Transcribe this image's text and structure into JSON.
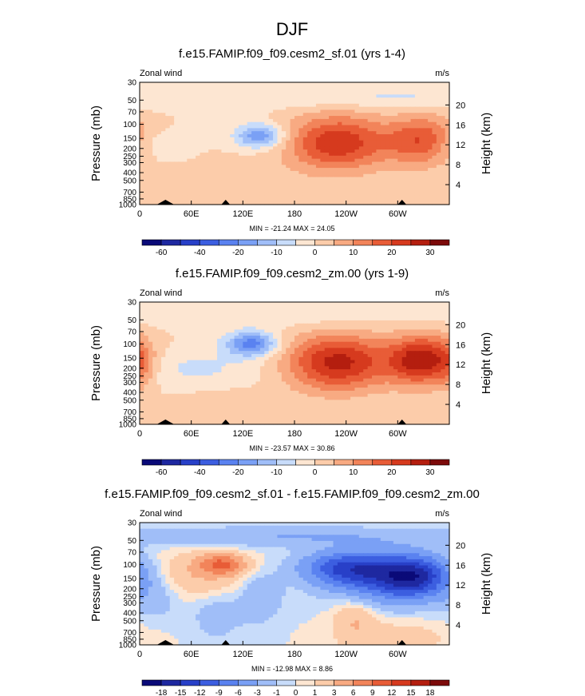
{
  "figure_title": "DJF",
  "chart_data": [
    {
      "type": "heatmap",
      "title": "f.e15.FAMIP.f09_f09.cesm2_sf.01 (yrs 1-4)",
      "left_label": "Zonal wind",
      "units_label": "m/s",
      "ylabel": "Pressure (mb)",
      "ylabel_right": "Height (km)",
      "pressure_ticks": [
        "30",
        "50",
        "70",
        "100",
        "150",
        "200",
        "250",
        "300",
        "400",
        "500",
        "700",
        "850",
        "1000"
      ],
      "height_ticks": [
        "20",
        "16",
        "12",
        "8",
        "4"
      ],
      "x_ticks": [
        "0",
        "60E",
        "120E",
        "180",
        "120W",
        "60W"
      ],
      "xlim": [
        0,
        360
      ],
      "stats": "MIN = -21.24  MAX = 24.05",
      "colorbar_labels": [
        "-60",
        "-40",
        "-20",
        "-10",
        "0",
        "10",
        "20",
        "30"
      ],
      "colorbar_levels": [
        -70,
        -60,
        -50,
        -40,
        -30,
        -20,
        -15,
        -10,
        -5,
        0,
        5,
        10,
        15,
        20,
        25,
        30
      ],
      "fields": [
        {
          "lon": 140,
          "p": 140,
          "value": -21,
          "width_deg": 28,
          "height_dec": 0.15
        },
        {
          "lon": 10,
          "p": 180,
          "value": -6,
          "width_deg": 40,
          "height_dec": 0.2
        },
        {
          "lon": 230,
          "p": 170,
          "value": 24,
          "width_deg": 60,
          "height_dec": 0.35
        },
        {
          "lon": 330,
          "p": 160,
          "value": 20,
          "width_deg": 40,
          "height_dec": 0.3
        },
        {
          "lon": 100,
          "p": 700,
          "value": 5,
          "width_deg": 70,
          "height_dec": 0.3
        },
        {
          "lon": 60,
          "p": 45,
          "value": -4,
          "width_deg": 180,
          "height_dec": 0.15
        },
        {
          "lon": 250,
          "p": 45,
          "value": -4,
          "width_deg": 120,
          "height_dec": 0.15
        }
      ]
    },
    {
      "type": "heatmap",
      "title": "f.e15.FAMIP.f09_f09.cesm2_zm.00 (yrs 1-9)",
      "left_label": "Zonal wind",
      "units_label": "m/s",
      "ylabel": "Pressure (mb)",
      "ylabel_right": "Height (km)",
      "pressure_ticks": [
        "30",
        "50",
        "70",
        "100",
        "150",
        "200",
        "250",
        "300",
        "400",
        "500",
        "700",
        "850",
        "1000"
      ],
      "height_ticks": [
        "20",
        "16",
        "12",
        "8",
        "4"
      ],
      "x_ticks": [
        "0",
        "60E",
        "120E",
        "180",
        "120W",
        "60W"
      ],
      "xlim": [
        0,
        360
      ],
      "stats": "MIN = -23.57  MAX = 30.86",
      "colorbar_labels": [
        "-60",
        "-40",
        "-20",
        "-10",
        "0",
        "10",
        "20",
        "30"
      ],
      "colorbar_levels": [
        -70,
        -60,
        -50,
        -40,
        -30,
        -20,
        -15,
        -10,
        -5,
        0,
        5,
        10,
        15,
        20,
        25,
        30
      ],
      "fields": [
        {
          "lon": 130,
          "p": 100,
          "value": -23,
          "width_deg": 30,
          "height_dec": 0.15
        },
        {
          "lon": 60,
          "p": 200,
          "value": -6,
          "width_deg": 90,
          "height_dec": 0.25
        },
        {
          "lon": 230,
          "p": 170,
          "value": 27,
          "width_deg": 60,
          "height_dec": 0.35
        },
        {
          "lon": 330,
          "p": 160,
          "value": 30,
          "width_deg": 40,
          "height_dec": 0.3
        },
        {
          "lon": 0,
          "p": 200,
          "value": 6,
          "width_deg": 15,
          "height_dec": 0.3
        },
        {
          "lon": 100,
          "p": 700,
          "value": 5,
          "width_deg": 60,
          "height_dec": 0.25
        },
        {
          "lon": 150,
          "p": 45,
          "value": -4,
          "width_deg": 200,
          "height_dec": 0.15
        }
      ]
    },
    {
      "type": "heatmap",
      "title": "f.e15.FAMIP.f09_f09.cesm2_sf.01 - f.e15.FAMIP.f09_f09.cesm2_zm.00",
      "left_label": "Zonal wind",
      "units_label": "m/s",
      "ylabel": "Pressure (mb)",
      "ylabel_right": "Height (km)",
      "pressure_ticks": [
        "30",
        "50",
        "70",
        "100",
        "150",
        "200",
        "250",
        "300",
        "400",
        "500",
        "700",
        "850",
        "1000"
      ],
      "height_ticks": [
        "20",
        "16",
        "12",
        "8",
        "4"
      ],
      "x_ticks": [
        "0",
        "60E",
        "120E",
        "180",
        "120W",
        "60W"
      ],
      "xlim": [
        0,
        360
      ],
      "stats": "MIN = -12.98  MAX =  8.86",
      "colorbar_labels": [
        "-18",
        "-15",
        "-12",
        "-9",
        "-6",
        "-3",
        "-1",
        "0",
        "1",
        "3",
        "6",
        "9",
        "12",
        "15",
        "18"
      ],
      "colorbar_levels": [
        -21,
        -18,
        -15,
        -12,
        -9,
        -6,
        -3,
        -1,
        0,
        1,
        3,
        6,
        9,
        12,
        15,
        18
      ],
      "fields": [
        {
          "lon": 320,
          "p": 140,
          "value": -13,
          "width_deg": 40,
          "height_dec": 0.25
        },
        {
          "lon": 240,
          "p": 110,
          "value": -10,
          "width_deg": 50,
          "height_dec": 0.2
        },
        {
          "lon": 280,
          "p": 150,
          "value": -8,
          "width_deg": 60,
          "height_dec": 0.3
        },
        {
          "lon": 95,
          "p": 100,
          "value": 8.8,
          "width_deg": 25,
          "height_dec": 0.12
        },
        {
          "lon": 70,
          "p": 140,
          "value": 3,
          "width_deg": 60,
          "height_dec": 0.3
        },
        {
          "lon": 250,
          "p": 450,
          "value": 3,
          "width_deg": 25,
          "height_dec": 0.3
        },
        {
          "lon": 90,
          "p": 400,
          "value": -2,
          "width_deg": 30,
          "height_dec": 0.35
        },
        {
          "lon": 140,
          "p": 250,
          "value": -3,
          "width_deg": 25,
          "height_dec": 0.3
        },
        {
          "lon": 20,
          "p": 250,
          "value": -2,
          "width_deg": 30,
          "height_dec": 0.3
        },
        {
          "lon": 160,
          "p": 45,
          "value": -3,
          "width_deg": 220,
          "height_dec": 0.12
        },
        {
          "lon": 300,
          "p": 800,
          "value": 2,
          "width_deg": 60,
          "height_dec": 0.2
        }
      ]
    }
  ],
  "colors": {
    "palette": [
      "#0a0a78",
      "#1e28a0",
      "#2840c8",
      "#3c5ee0",
      "#5a82f0",
      "#7aa0f5",
      "#a0bef8",
      "#c8dcfa",
      "#fde6d2",
      "#fcccaa",
      "#f8aa82",
      "#f2845a",
      "#e85c37",
      "#d63a1e",
      "#b41e0f",
      "#7c0a0a"
    ],
    "topography": "#000000"
  }
}
